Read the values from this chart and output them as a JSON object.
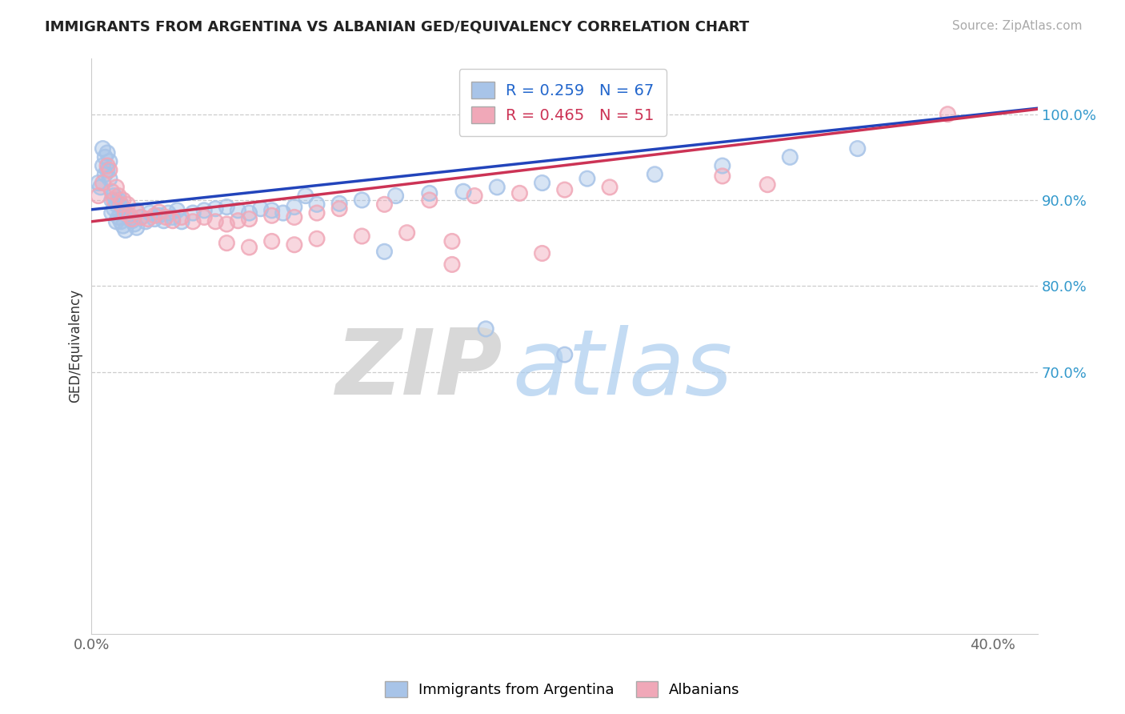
{
  "title": "IMMIGRANTS FROM ARGENTINA VS ALBANIAN GED/EQUIVALENCY CORRELATION CHART",
  "source": "Source: ZipAtlas.com",
  "ylabel": "GED/Equivalency",
  "blue_color": "#a8c4e8",
  "pink_color": "#f0a8b8",
  "line_blue": "#2244bb",
  "line_pink": "#cc3355",
  "xlim": [
    0.0,
    0.42
  ],
  "ylim": [
    0.395,
    1.065
  ],
  "yticks": [
    1.0,
    0.9,
    0.8,
    0.7
  ],
  "ytick_labels": [
    "100.0%",
    "90.0%",
    "80.0%",
    "70.0%"
  ],
  "xtick_left_label": "0.0%",
  "xtick_right_label": "40.0%",
  "R_blue": 0.259,
  "N_blue": 67,
  "R_pink": 0.465,
  "N_pink": 51,
  "legend_r1_text": "R = 0.259",
  "legend_n1_text": "N = 67",
  "legend_r2_text": "R = 0.465",
  "legend_n2_text": "N = 51",
  "legend_r_color": "#2266cc",
  "legend_n_color": "#cc3355",
  "bottom_legend": [
    "Immigrants from Argentina",
    "Albanians"
  ],
  "blue_x": [
    0.003,
    0.004,
    0.005,
    0.005,
    0.006,
    0.006,
    0.007,
    0.007,
    0.008,
    0.008,
    0.009,
    0.009,
    0.01,
    0.01,
    0.011,
    0.011,
    0.012,
    0.012,
    0.013,
    0.013,
    0.014,
    0.014,
    0.015,
    0.015,
    0.016,
    0.017,
    0.018,
    0.019,
    0.02,
    0.02,
    0.022,
    0.024,
    0.026,
    0.028,
    0.03,
    0.032,
    0.034,
    0.036,
    0.038,
    0.04,
    0.045,
    0.05,
    0.055,
    0.06,
    0.065,
    0.07,
    0.075,
    0.08,
    0.085,
    0.09,
    0.1,
    0.11,
    0.12,
    0.135,
    0.15,
    0.165,
    0.18,
    0.2,
    0.22,
    0.25,
    0.28,
    0.31,
    0.34,
    0.175,
    0.13,
    0.095,
    0.21
  ],
  "blue_y": [
    0.92,
    0.915,
    0.96,
    0.94,
    0.95,
    0.93,
    0.955,
    0.935,
    0.945,
    0.925,
    0.9,
    0.885,
    0.905,
    0.89,
    0.895,
    0.875,
    0.9,
    0.88,
    0.895,
    0.875,
    0.89,
    0.87,
    0.885,
    0.865,
    0.882,
    0.878,
    0.876,
    0.872,
    0.888,
    0.868,
    0.88,
    0.875,
    0.885,
    0.878,
    0.882,
    0.876,
    0.885,
    0.88,
    0.888,
    0.875,
    0.885,
    0.888,
    0.89,
    0.892,
    0.888,
    0.885,
    0.89,
    0.888,
    0.885,
    0.892,
    0.895,
    0.896,
    0.9,
    0.905,
    0.908,
    0.91,
    0.915,
    0.92,
    0.925,
    0.93,
    0.94,
    0.95,
    0.96,
    0.75,
    0.84,
    0.905,
    0.72
  ],
  "pink_x": [
    0.003,
    0.005,
    0.007,
    0.008,
    0.009,
    0.01,
    0.011,
    0.012,
    0.013,
    0.014,
    0.015,
    0.016,
    0.017,
    0.018,
    0.02,
    0.022,
    0.025,
    0.028,
    0.03,
    0.033,
    0.036,
    0.04,
    0.045,
    0.05,
    0.055,
    0.06,
    0.065,
    0.07,
    0.08,
    0.09,
    0.1,
    0.11,
    0.13,
    0.15,
    0.17,
    0.19,
    0.21,
    0.23,
    0.06,
    0.07,
    0.08,
    0.09,
    0.1,
    0.12,
    0.14,
    0.16,
    0.28,
    0.3,
    0.38,
    0.16,
    0.2
  ],
  "pink_y": [
    0.905,
    0.92,
    0.94,
    0.935,
    0.91,
    0.9,
    0.915,
    0.905,
    0.895,
    0.9,
    0.885,
    0.895,
    0.882,
    0.878,
    0.886,
    0.88,
    0.878,
    0.882,
    0.886,
    0.88,
    0.876,
    0.88,
    0.875,
    0.88,
    0.875,
    0.872,
    0.876,
    0.878,
    0.882,
    0.88,
    0.885,
    0.89,
    0.895,
    0.9,
    0.905,
    0.908,
    0.912,
    0.915,
    0.85,
    0.845,
    0.852,
    0.848,
    0.855,
    0.858,
    0.862,
    0.852,
    0.928,
    0.918,
    1.0,
    0.825,
    0.838
  ]
}
